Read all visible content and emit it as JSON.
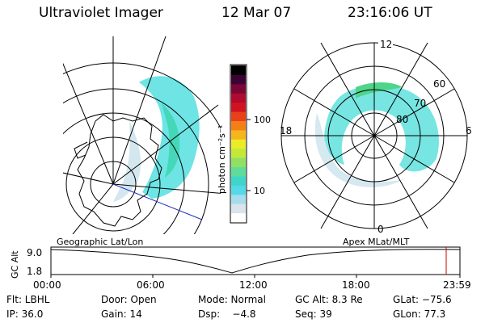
{
  "header": {
    "title": "Ultraviolet Imager",
    "date": "12 Mar 07",
    "time": "23:16:06 UT"
  },
  "colorbar": {
    "label": "photon cm⁻²s⁻¹",
    "tick_labels": [
      "100",
      "10"
    ],
    "colors": [
      "#ffffff",
      "#d9e4ec",
      "#a6dcec",
      "#54d9e8",
      "#3fd6c9",
      "#5fdc9a",
      "#8fe063",
      "#c2e83a",
      "#eaec28",
      "#f7b51c",
      "#f47f17",
      "#e8401a",
      "#d01221",
      "#b00a2e",
      "#7a0635",
      "#3b0233",
      "#000000"
    ]
  },
  "left_panel": {
    "label": "Geographic Lat/Lon"
  },
  "right_panel": {
    "label": "Apex MLat/MLT",
    "mlt_labels": [
      "12",
      "18",
      "6",
      "0"
    ],
    "lat_labels": [
      "60",
      "70",
      "80"
    ]
  },
  "altitude_plot": {
    "ylabel": "GC Alt",
    "ymax_label": "9.0",
    "ymin_label": "1.8",
    "x_labels": [
      "00:00",
      "06:00",
      "12:00",
      "18:00",
      "23:59"
    ],
    "marker_color": "#cc0000"
  },
  "footer": {
    "flt": "Flt: LBHL",
    "door": "Door: Open",
    "mode": "Mode: Normal",
    "gc_alt": "GC Alt: 8.3 Re",
    "glat": "GLat: −75.6",
    "ip": "IP: 36.0",
    "gain": "Gain: 14",
    "dsp": "Dsp:    −4.8",
    "seq": "Seq: 39",
    "glon": "GLon: 77.3"
  }
}
